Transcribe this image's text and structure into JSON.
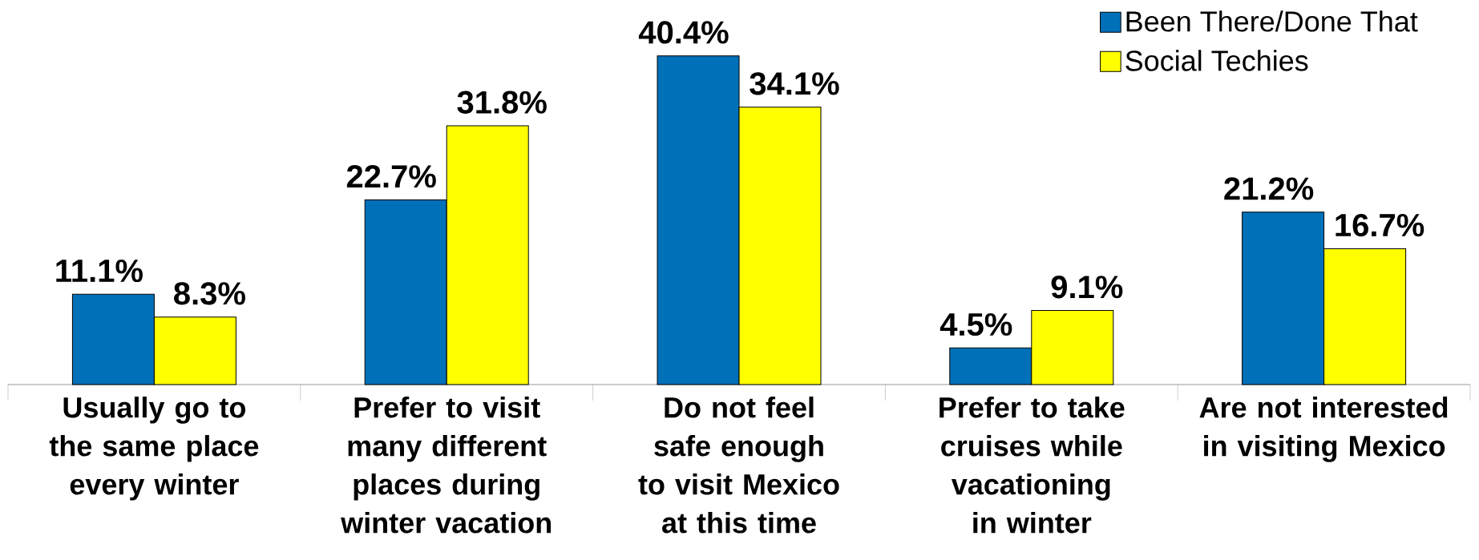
{
  "chart_data": {
    "type": "bar",
    "categories": [
      "Usually go to the same place every winter",
      "Prefer to visit many different places during winter vacation",
      "Do not feel safe enough to visit Mexico at this time",
      "Prefer to take cruises while vacationing in winter",
      "Are not interested in visiting Mexico"
    ],
    "series": [
      {
        "name": "Been There/Done That",
        "color": "#0070b8",
        "values": [
          11.1,
          22.7,
          40.4,
          4.5,
          21.2
        ],
        "value_labels": [
          "11.1%",
          "22.7%",
          "40.4%",
          "4.5%",
          "21.2%"
        ]
      },
      {
        "name": "Social Techies",
        "color": "#ffff00",
        "values": [
          8.3,
          31.8,
          34.1,
          9.1,
          16.7
        ],
        "value_labels": [
          "8.3%",
          "31.8%",
          "34.1%",
          "9.1%",
          "16.7%"
        ]
      }
    ],
    "legend": "top right"
  }
}
